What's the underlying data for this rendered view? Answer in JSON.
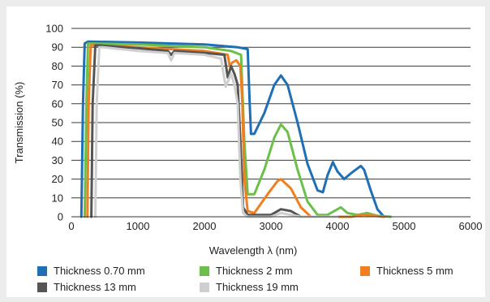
{
  "chart_data": {
    "type": "line",
    "xlabel": "Wavelength λ (nm)",
    "ylabel": "Transmission (%)",
    "xlim": [
      0,
      6000
    ],
    "ylim": [
      0,
      100
    ],
    "xticks": [
      0,
      1000,
      2000,
      3000,
      4000,
      5000,
      6000
    ],
    "yticks": [
      0,
      10,
      20,
      30,
      40,
      50,
      60,
      70,
      80,
      90,
      100
    ],
    "grid": "horizontal",
    "legend_position": "bottom",
    "series": [
      {
        "name": "Thickness 0.70 mm",
        "color": "#1f6fb4",
        "points": [
          [
            150,
            0
          ],
          [
            175,
            60
          ],
          [
            200,
            92
          ],
          [
            250,
            93
          ],
          [
            1000,
            92.5
          ],
          [
            2000,
            91.5
          ],
          [
            2500,
            90
          ],
          [
            2650,
            89
          ],
          [
            2680,
            60
          ],
          [
            2700,
            44
          ],
          [
            2750,
            44
          ],
          [
            2900,
            55
          ],
          [
            3050,
            70
          ],
          [
            3150,
            75
          ],
          [
            3250,
            70
          ],
          [
            3400,
            50
          ],
          [
            3550,
            28
          ],
          [
            3700,
            14
          ],
          [
            3780,
            13
          ],
          [
            3850,
            22
          ],
          [
            3930,
            29
          ],
          [
            4000,
            24
          ],
          [
            4100,
            20
          ],
          [
            4200,
            23
          ],
          [
            4350,
            27
          ],
          [
            4400,
            25
          ],
          [
            4500,
            14
          ],
          [
            4600,
            4
          ],
          [
            4700,
            0
          ]
        ]
      },
      {
        "name": "Thickness 2 mm",
        "color": "#6cc04a",
        "points": [
          [
            200,
            0
          ],
          [
            225,
            60
          ],
          [
            250,
            92
          ],
          [
            300,
            92
          ],
          [
            1000,
            91.5
          ],
          [
            2000,
            90
          ],
          [
            2400,
            88
          ],
          [
            2550,
            86
          ],
          [
            2600,
            40
          ],
          [
            2650,
            12
          ],
          [
            2750,
            12
          ],
          [
            2900,
            25
          ],
          [
            3050,
            42
          ],
          [
            3150,
            49
          ],
          [
            3250,
            45
          ],
          [
            3400,
            25
          ],
          [
            3550,
            8
          ],
          [
            3700,
            1
          ],
          [
            3850,
            1
          ],
          [
            3950,
            3
          ],
          [
            4050,
            5
          ],
          [
            4150,
            2
          ],
          [
            4300,
            1
          ],
          [
            4450,
            2
          ],
          [
            4600,
            0.5
          ],
          [
            4800,
            0
          ]
        ]
      },
      {
        "name": "Thickness 5 mm",
        "color": "#f07f22",
        "points": [
          [
            240,
            0
          ],
          [
            260,
            60
          ],
          [
            290,
            91
          ],
          [
            350,
            91
          ],
          [
            1000,
            90
          ],
          [
            2000,
            88
          ],
          [
            2350,
            86
          ],
          [
            2380,
            80
          ],
          [
            2420,
            82
          ],
          [
            2480,
            83
          ],
          [
            2540,
            80
          ],
          [
            2570,
            60
          ],
          [
            2600,
            20
          ],
          [
            2650,
            3
          ],
          [
            2750,
            2
          ],
          [
            2950,
            12
          ],
          [
            3100,
            19
          ],
          [
            3150,
            20
          ],
          [
            3300,
            15
          ],
          [
            3450,
            5
          ],
          [
            3600,
            0
          ],
          [
            4200,
            0
          ],
          [
            4400,
            1
          ],
          [
            4700,
            0
          ]
        ]
      },
      {
        "name": "Thickness 13 mm",
        "color": "#555555",
        "points": [
          [
            300,
            0
          ],
          [
            320,
            60
          ],
          [
            360,
            91
          ],
          [
            420,
            91
          ],
          [
            1000,
            89.5
          ],
          [
            1450,
            88
          ],
          [
            1500,
            86
          ],
          [
            1550,
            88
          ],
          [
            2000,
            87
          ],
          [
            2300,
            86
          ],
          [
            2350,
            74
          ],
          [
            2400,
            80
          ],
          [
            2450,
            76
          ],
          [
            2500,
            70
          ],
          [
            2540,
            40
          ],
          [
            2580,
            5
          ],
          [
            2650,
            1
          ],
          [
            3000,
            1
          ],
          [
            3150,
            4
          ],
          [
            3300,
            3
          ],
          [
            3450,
            0
          ],
          [
            4000,
            0
          ]
        ]
      },
      {
        "name": "Thickness 19 mm",
        "color": "#cfcfcf",
        "points": [
          [
            360,
            0
          ],
          [
            380,
            60
          ],
          [
            420,
            90
          ],
          [
            480,
            90
          ],
          [
            1000,
            88
          ],
          [
            1450,
            87
          ],
          [
            1500,
            83
          ],
          [
            1550,
            87
          ],
          [
            2000,
            86
          ],
          [
            2250,
            84
          ],
          [
            2320,
            69
          ],
          [
            2400,
            76
          ],
          [
            2450,
            70
          ],
          [
            2500,
            60
          ],
          [
            2540,
            20
          ],
          [
            2580,
            2
          ],
          [
            2650,
            0
          ],
          [
            3000,
            0
          ],
          [
            3150,
            2
          ],
          [
            3300,
            1
          ],
          [
            3450,
            0
          ],
          [
            4000,
            0
          ]
        ]
      }
    ]
  }
}
